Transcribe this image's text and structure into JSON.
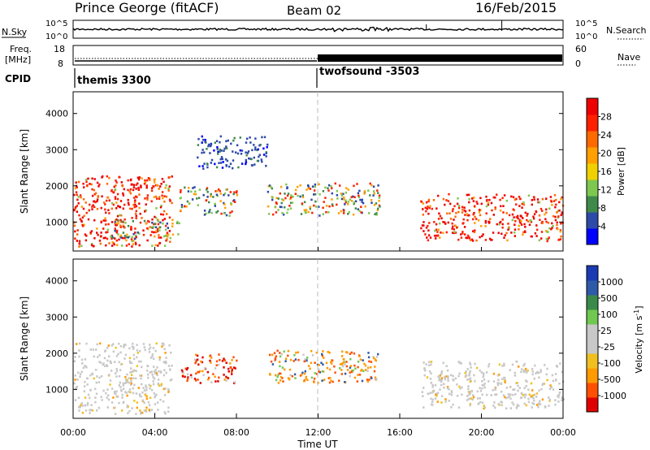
{
  "header": {
    "station": "Prince George (fitACF)",
    "beam": "Beam 02",
    "date": "16/Feb/2015"
  },
  "noise_panel": {
    "left_label": "N.Sky",
    "right_label": "N.Search",
    "tick_high": "10^5",
    "tick_low": "10^0"
  },
  "freq_panel": {
    "label_line1": "Freq.",
    "label_line2": "[MHz]",
    "left_ticks": [
      "18",
      "8"
    ],
    "right_ticks": [
      "60",
      "0"
    ],
    "right_label": "Nave"
  },
  "cpid": {
    "label": "CPID",
    "segments": [
      {
        "name": "themis 3300",
        "start_hour": 0
      },
      {
        "name": "twofsound -3503",
        "start_hour": 12
      }
    ]
  },
  "colors": {
    "power": [
      "#0000ff",
      "#2e4aa8",
      "#3f8a4a",
      "#7ec850",
      "#f0d000",
      "#ffa000",
      "#ff6a00",
      "#ff2000",
      "#ee0000"
    ],
    "velocity": [
      "#e00000",
      "#ff5000",
      "#ff9a00",
      "#f0c020",
      "#c8c8c8",
      "#c8c8c8",
      "#70c850",
      "#3a8a4a",
      "#2e5aa8",
      "#1a3ab4"
    ]
  },
  "chart_data": [
    {
      "type": "heatmap",
      "parameter": "Power",
      "xlabel": "",
      "ylabel": "Slant Range [km]",
      "xlim": [
        0,
        24
      ],
      "ylim": [
        200,
        4600
      ],
      "yticks": [
        1000,
        2000,
        3000,
        4000
      ],
      "colorbar": {
        "label": "Power [dB]",
        "ticks": [
          "28",
          "24",
          "20",
          "16",
          "12",
          "8",
          "4"
        ],
        "range": [
          0,
          32
        ]
      },
      "regions": [
        {
          "t0": 0.0,
          "t1": 4.8,
          "r0": 350,
          "r1": 2300,
          "level": "high"
        },
        {
          "t0": 1.5,
          "t1": 5.2,
          "r0": 500,
          "r1": 1100,
          "level": "medium"
        },
        {
          "t0": 5.2,
          "t1": 8.0,
          "r0": 1200,
          "r1": 2000,
          "level": "medium"
        },
        {
          "t0": 6.0,
          "t1": 9.5,
          "r0": 2500,
          "r1": 3400,
          "level": "low"
        },
        {
          "t0": 9.5,
          "t1": 15.0,
          "r0": 1200,
          "r1": 2100,
          "level": "medium"
        },
        {
          "t0": 17.0,
          "t1": 24.0,
          "r0": 500,
          "r1": 1800,
          "level": "high"
        }
      ]
    },
    {
      "type": "heatmap",
      "parameter": "Velocity",
      "xlabel": "Time UT",
      "ylabel": "Slant Range [km]",
      "xlim": [
        0,
        24
      ],
      "ylim": [
        200,
        4600
      ],
      "yticks": [
        1000,
        2000,
        3000,
        4000
      ],
      "xticks": [
        "00:00",
        "04:00",
        "08:00",
        "12:00",
        "16:00",
        "20:00",
        "00:00"
      ],
      "colorbar": {
        "label": "Velocity [m s",
        "label_sup": "-1",
        "label_close": "]",
        "ticks": [
          "1000",
          "500",
          "100",
          "25",
          "-25",
          "-100",
          "-500",
          "-1000"
        ],
        "range": [
          -1000,
          1000
        ]
      },
      "regions": [
        {
          "t0": 0.0,
          "t1": 4.8,
          "r0": 350,
          "r1": 2300,
          "level": "ground"
        },
        {
          "t0": 5.2,
          "t1": 8.0,
          "r0": 1200,
          "r1": 2000,
          "level": "away"
        },
        {
          "t0": 9.5,
          "t1": 15.0,
          "r0": 1200,
          "r1": 2100,
          "level": "mixed"
        },
        {
          "t0": 17.0,
          "t1": 24.0,
          "r0": 500,
          "r1": 1800,
          "level": "ground"
        }
      ]
    }
  ]
}
